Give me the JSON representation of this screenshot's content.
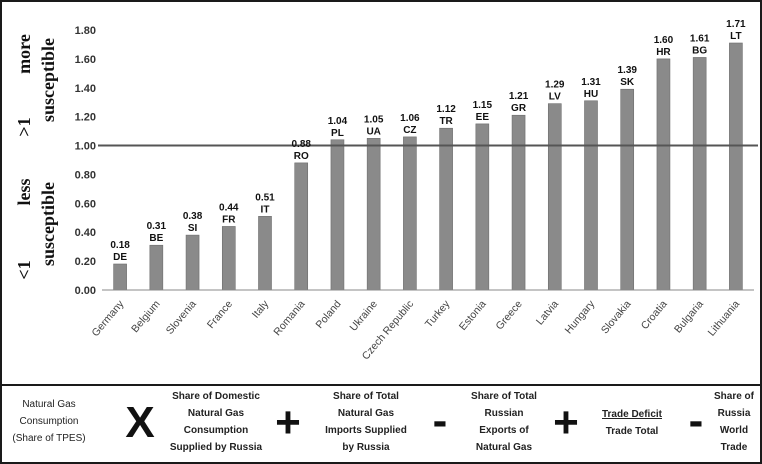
{
  "chart_data": {
    "type": "bar",
    "categories": [
      "Germany",
      "Belgium",
      "Slovenia",
      "France",
      "Italy",
      "Romania",
      "Poland",
      "Ukraine",
      "Czech Republic",
      "Turkey",
      "Estonia",
      "Greece",
      "Latvia",
      "Hungary",
      "Slovakia",
      "Croatia",
      "Bulgaria",
      "Lithuania"
    ],
    "codes": [
      "DE",
      "BE",
      "SI",
      "FR",
      "IT",
      "RO",
      "PL",
      "UA",
      "CZ",
      "TR",
      "EE",
      "GR",
      "LV",
      "HU",
      "SK",
      "HR",
      "BG",
      "LT"
    ],
    "values": [
      0.18,
      0.31,
      0.38,
      0.44,
      0.51,
      0.88,
      1.04,
      1.05,
      1.06,
      1.12,
      1.15,
      1.21,
      1.29,
      1.31,
      1.39,
      1.6,
      1.61,
      1.71
    ],
    "value_labels": [
      "0.18",
      "0.31",
      "0.38",
      "0.44",
      "0.51",
      "0.88",
      "1.04",
      "1.05",
      "1.06",
      "1.12",
      "1.15",
      "1.21",
      "1.29",
      "1.31",
      "1.39",
      "1.60",
      "1.61",
      "1.71"
    ],
    "yticks": [
      "0.00",
      "0.20",
      "0.40",
      "0.60",
      "0.80",
      "1.00",
      "1.20",
      "1.40",
      "1.60",
      "1.80"
    ],
    "ylim": [
      0,
      1.8
    ],
    "reference_line": 1.0,
    "grid": false,
    "bar_color": "#8a8a8a",
    "upper_label": {
      "line1": "more",
      "line2": "susceptible",
      "prefix": ">1"
    },
    "lower_label": {
      "line1": "less",
      "line2": "susceptible",
      "prefix": "<1"
    }
  },
  "formula": {
    "term1": [
      "Natural Gas",
      "Consumption",
      "(Share of TPES)"
    ],
    "op1": "X",
    "term2": [
      "Share of Domestic",
      "Natural Gas",
      "Consumption",
      "Supplied by Russia"
    ],
    "op2": "+",
    "term3": [
      "Share of Total",
      "Natural Gas",
      "Imports Supplied",
      "by Russia"
    ],
    "op3": "-",
    "term4": [
      "Share of Total",
      "Russian",
      "Exports of",
      "Natural Gas"
    ],
    "op4": "+",
    "term5": [
      "Trade Deficit",
      "Trade Total"
    ],
    "op5": "-",
    "term6": [
      "Share of",
      "Russia",
      "World",
      "Trade"
    ]
  }
}
